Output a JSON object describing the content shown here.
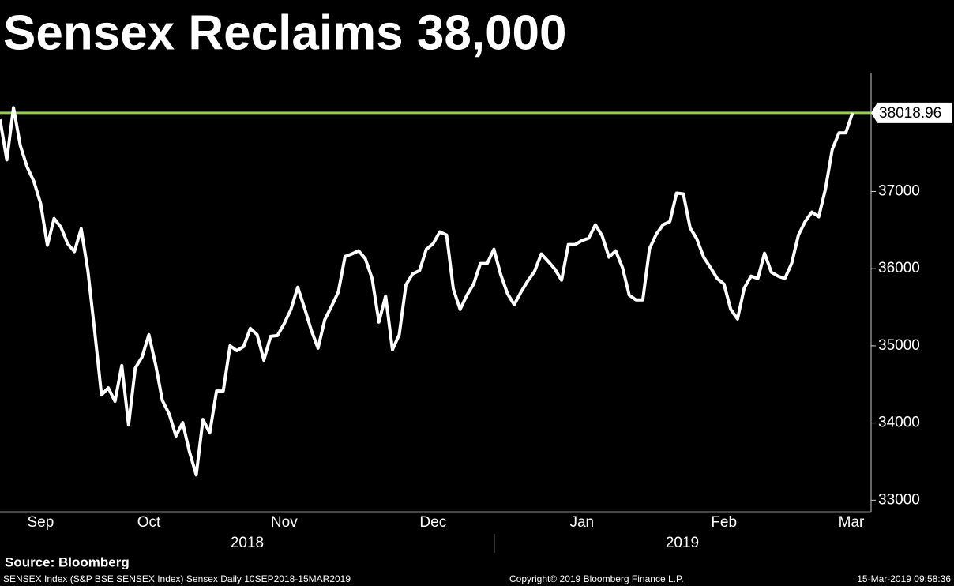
{
  "chart_data": {
    "type": "line",
    "title": "Sensex Reclaims 38,000",
    "color": "#ffffff",
    "values": [
      37933,
      37410,
      38087,
      37595,
      37318,
      37133,
      36846,
      36303,
      36651,
      36538,
      36323,
      36221,
      36518,
      35964,
      35185,
      34364,
      34456,
      34282,
      34744,
      33974,
      34713,
      34856,
      35144,
      34754,
      34292,
      34118,
      33831,
      34005,
      33626,
      33328,
      34046,
      33872,
      34415,
      34415,
      35000,
      34938,
      34990,
      35226,
      35144,
      34815,
      35123,
      35133,
      35287,
      35472,
      35759,
      35492,
      35205,
      34969,
      35338,
      35513,
      35697,
      36159,
      36190,
      36231,
      36128,
      35872,
      35308,
      35646,
      34949,
      35144,
      35790,
      35933,
      35974,
      36251,
      36323,
      36477,
      36436,
      35738,
      35472,
      35656,
      35800,
      36067,
      36067,
      36251,
      35923,
      35677,
      35533,
      35697,
      35841,
      35964,
      36190,
      36097,
      35995,
      35851,
      36313,
      36313,
      36364,
      36395,
      36569,
      36426,
      36149,
      36231,
      36015,
      35656,
      35595,
      35595,
      36262,
      36446,
      36569,
      36610,
      36979,
      36969,
      36528,
      36385,
      36149,
      36015,
      35872,
      35800,
      35472,
      35349,
      35749,
      35903,
      35872,
      36200,
      35954,
      35903,
      35872,
      36067,
      36436,
      36610,
      36733,
      36672,
      37031,
      37544,
      37759,
      37759,
      38018.96
    ],
    "categories": [
      null,
      null,
      null,
      null,
      null,
      null,
      "Sep",
      null,
      null,
      null,
      null,
      null,
      null,
      null,
      null,
      null,
      null,
      null,
      null,
      null,
      null,
      null,
      "Oct",
      null,
      null,
      null,
      null,
      null,
      null,
      null,
      null,
      null,
      null,
      null,
      null,
      null,
      null,
      null,
      null,
      null,
      null,
      null,
      "Nov",
      null,
      null,
      null,
      null,
      null,
      null,
      null,
      null,
      null,
      null,
      null,
      null,
      null,
      null,
      null,
      null,
      null,
      null,
      null,
      null,
      null,
      "Dec",
      null,
      null,
      null,
      null,
      null,
      null,
      null,
      null,
      null,
      null,
      null,
      null,
      null,
      null,
      null,
      null,
      null,
      null,
      null,
      null,
      null,
      "Jan",
      null,
      null,
      null,
      null,
      null,
      null,
      null,
      null,
      null,
      null,
      null,
      null,
      null,
      null,
      null,
      null,
      null,
      null,
      null,
      null,
      "Feb",
      null,
      null,
      null,
      null,
      null,
      null,
      null,
      null,
      null,
      null,
      null,
      null,
      null,
      null,
      null,
      null,
      null,
      null,
      "Mar"
    ],
    "year_labels": [
      "2018",
      "2019"
    ],
    "ylim": [
      32850,
      38540
    ],
    "yticks": [
      33000,
      34000,
      35000,
      36000,
      37000
    ],
    "hline": {
      "value": 38018.96,
      "color": "#8fd14f"
    },
    "source": "Source: Bloomberg",
    "footnote": "SENSEX Index (S&P BSE SENSEX Index) Sensex  Daily 10SEP2018-15MAR2019",
    "copyright": "Copyright© 2019 Bloomberg Finance L.P.",
    "timestamp": "15-Mar-2019 09:58:36"
  }
}
